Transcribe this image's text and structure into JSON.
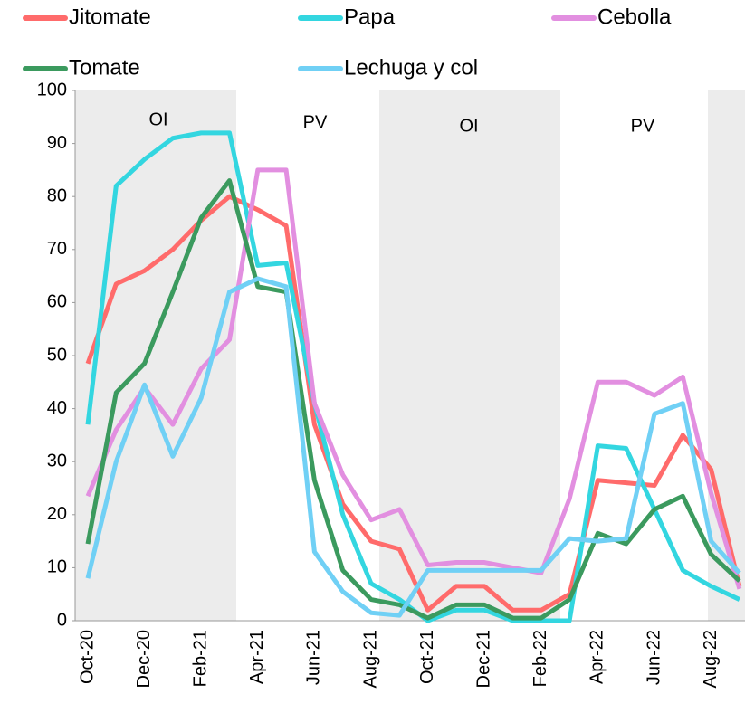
{
  "chart_data": {
    "type": "line",
    "categories": [
      "Oct-20",
      null,
      "Dec-20",
      null,
      "Feb-21",
      null,
      "Apr-21",
      null,
      "Jun-21",
      null,
      "Aug-21",
      null,
      "Oct-21",
      null,
      "Dec-21",
      null,
      "Feb-22",
      null,
      "Apr-22",
      null,
      "Jun-22",
      null,
      "Aug-22",
      null
    ],
    "series": [
      {
        "name": "Jitomate",
        "color": "#ff6b6b",
        "values": [
          48.5,
          63.5,
          66,
          70,
          75.5,
          80,
          77.5,
          74.5,
          37,
          22,
          15,
          13.5,
          2,
          6.5,
          6.5,
          2,
          2,
          5,
          26.5,
          26,
          25.5,
          35,
          28.5,
          6.5
        ]
      },
      {
        "name": "Papa",
        "color": "#33d6e0",
        "values": [
          37,
          82,
          87,
          91,
          92,
          92,
          67,
          67.5,
          41,
          20,
          7,
          4,
          0,
          2,
          2,
          0,
          0,
          0,
          33,
          32.5,
          21,
          9.5,
          6.5,
          4
        ]
      },
      {
        "name": "Cebolla",
        "color": "#e28fe0",
        "values": [
          23.5,
          36,
          44,
          37,
          47.5,
          53,
          85,
          85,
          41,
          27.5,
          19,
          21,
          10.5,
          11,
          11,
          10,
          9,
          23,
          45,
          45,
          42.5,
          46,
          24,
          6
        ]
      },
      {
        "name": "Tomate",
        "color": "#3b9a5e",
        "values": [
          14.5,
          43,
          48.5,
          62,
          76,
          83,
          63,
          62,
          26.5,
          9.5,
          4,
          3,
          0.5,
          3,
          3,
          0.5,
          0.5,
          4,
          16.5,
          14.5,
          21,
          23.5,
          12.5,
          7.5
        ]
      },
      {
        "name": "Lechuga y col",
        "color": "#70d0f5",
        "values": [
          8,
          30,
          44.5,
          31,
          42,
          62,
          64.5,
          63,
          13,
          5.5,
          1.5,
          1,
          9.5,
          9.5,
          9.5,
          9.5,
          9.5,
          15.5,
          15,
          15.5,
          39,
          41,
          15,
          9
        ]
      }
    ],
    "annotations": [
      "OI",
      "PV",
      "OI",
      "PV"
    ],
    "ylim": [
      0,
      100
    ],
    "yticks": [
      0,
      10,
      20,
      30,
      40,
      50,
      60,
      70,
      80,
      90,
      100
    ],
    "grid": false
  }
}
